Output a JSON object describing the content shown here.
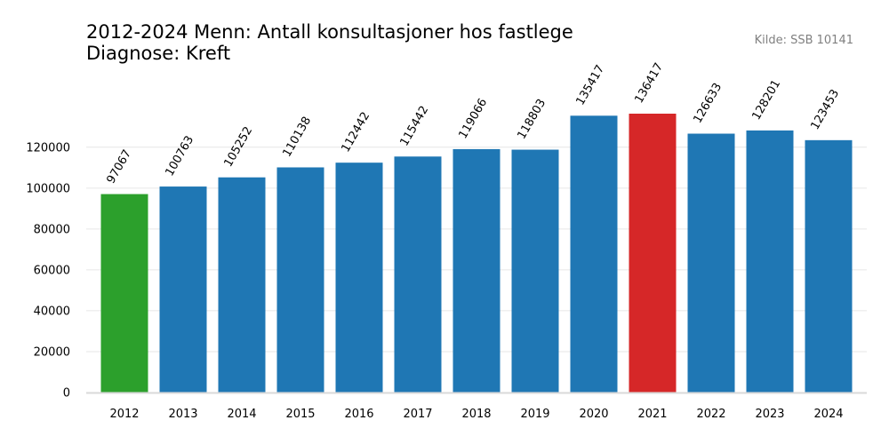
{
  "title": {
    "line1": "2012-2024 Menn: Antall konsultasjoner hos fastlege",
    "line2": "Diagnose: Kreft"
  },
  "source": "Kilde: SSB 10141",
  "colors": {
    "default_bar": "#1f77b4",
    "first_bar": "#2ca02c",
    "max_bar": "#d62728",
    "grid": "#e6e6e6",
    "axis": "#d9d9d9"
  },
  "chart_data": {
    "type": "bar",
    "categories": [
      "2012",
      "2013",
      "2014",
      "2015",
      "2016",
      "2017",
      "2018",
      "2019",
      "2020",
      "2021",
      "2022",
      "2023",
      "2024"
    ],
    "values": [
      97067,
      100763,
      105252,
      110138,
      112442,
      115442,
      119066,
      118803,
      135417,
      136417,
      126633,
      128201,
      123453
    ],
    "bar_colors": [
      "#2ca02c",
      "#1f77b4",
      "#1f77b4",
      "#1f77b4",
      "#1f77b4",
      "#1f77b4",
      "#1f77b4",
      "#1f77b4",
      "#1f77b4",
      "#d62728",
      "#1f77b4",
      "#1f77b4",
      "#1f77b4"
    ],
    "yticks": [
      0,
      20000,
      40000,
      60000,
      80000,
      100000,
      120000
    ],
    "ylim": [
      0,
      136417
    ],
    "grid": true,
    "data_labels": true,
    "data_label_rotation": "rotated 60 degrees",
    "xlabel": "",
    "ylabel": ""
  }
}
